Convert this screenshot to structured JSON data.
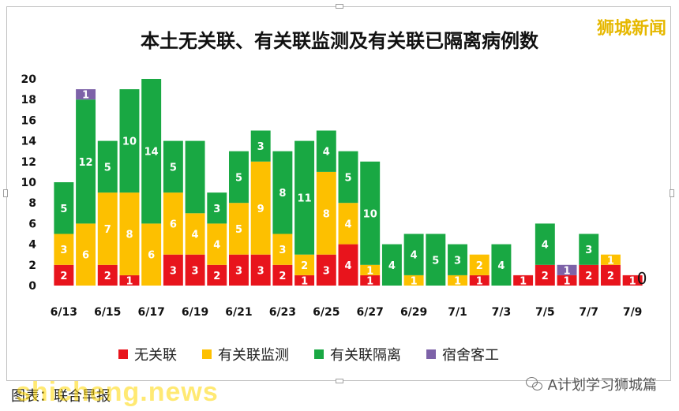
{
  "brand": "狮城新闻",
  "footer": {
    "left": "图表：联合早报",
    "right": "A计划学习狮城篇",
    "watermark": "shicheng.news"
  },
  "colors": {
    "unlinked": "#e8141c",
    "linked_surveillance": "#fdc000",
    "linked_quarantine": "#19a843",
    "dorm": "#7d62a8"
  },
  "chart_data": {
    "type": "bar",
    "stacked": true,
    "title": "本土无关联、有关联监测及有关联已隔离病例数",
    "xlabel": "",
    "ylabel": "",
    "ylim": [
      0,
      20
    ],
    "yticks": [
      0,
      2,
      4,
      6,
      8,
      10,
      12,
      14,
      16,
      18,
      20
    ],
    "grid": false,
    "legend_position": "bottom",
    "categories": [
      "6/13",
      "6/14",
      "6/15",
      "6/16",
      "6/17",
      "6/18",
      "6/19",
      "6/20",
      "6/21",
      "6/22",
      "6/23",
      "6/24",
      "6/25",
      "6/26",
      "6/27",
      "6/28",
      "6/29",
      "6/30",
      "7/1",
      "7/2",
      "7/3",
      "7/4",
      "7/5",
      "7/6",
      "7/7",
      "7/8",
      "7/9"
    ],
    "x_tick_labels": [
      "6/13",
      "",
      "6/15",
      "",
      "6/17",
      "",
      "6/19",
      "",
      "6/21",
      "",
      "6/23",
      "",
      "6/25",
      "",
      "6/27",
      "",
      "6/29",
      "",
      "7/1",
      "",
      "7/3",
      "",
      "7/5",
      "",
      "7/7",
      "",
      "7/9"
    ],
    "series": [
      {
        "name": "无关联",
        "color": "#e8141c",
        "values": [
          2,
          0,
          2,
          1,
          0,
          3,
          3,
          2,
          3,
          3,
          2,
          1,
          3,
          4,
          1,
          0,
          0,
          0,
          0,
          1,
          0,
          1,
          2,
          1,
          2,
          2,
          1
        ]
      },
      {
        "name": "有关联监测",
        "color": "#fdc000",
        "values": [
          3,
          6,
          7,
          8,
          6,
          6,
          4,
          4,
          5,
          9,
          3,
          2,
          8,
          4,
          1,
          0,
          1,
          0,
          1,
          2,
          0,
          0,
          0,
          0,
          0,
          1,
          0
        ]
      },
      {
        "name": "有关联隔离",
        "color": "#19a843",
        "values": [
          5,
          12,
          5,
          10,
          14,
          5,
          7,
          3,
          5,
          3,
          8,
          11,
          4,
          5,
          10,
          4,
          4,
          5,
          3,
          0,
          4,
          0,
          4,
          0,
          3,
          0,
          0
        ]
      },
      {
        "name": "宿舍客工",
        "color": "#7d62a8",
        "values": [
          0,
          1,
          0,
          0,
          0,
          0,
          0,
          0,
          0,
          0,
          0,
          0,
          0,
          0,
          0,
          0,
          0,
          0,
          0,
          0,
          0,
          0,
          0,
          1,
          0,
          0,
          0
        ]
      }
    ],
    "value_labels": {
      "无关联": [
        "2",
        "",
        "2",
        "1",
        "",
        "3",
        "3",
        "2",
        "3",
        "3",
        "2",
        "1",
        "3",
        "4",
        "1",
        "",
        "",
        "",
        "",
        "1",
        "",
        "1",
        "2",
        "1",
        "2",
        "2",
        "1"
      ],
      "有关联监测": [
        "3",
        "6",
        "7",
        "8",
        "6",
        "6",
        "4",
        "4",
        "5",
        "9",
        "3",
        "2",
        "8",
        "4",
        "1",
        "",
        "1",
        "",
        "1",
        "2",
        "",
        "",
        "",
        "",
        "",
        "1",
        ""
      ],
      "有关联隔离": [
        "5",
        "12",
        "5",
        "10",
        "14",
        "5",
        "",
        "3",
        "5",
        "3",
        "8",
        "11",
        "4",
        "5",
        "10",
        "4",
        "4",
        "5",
        "3",
        "",
        "4",
        "",
        "4",
        "",
        "3",
        "",
        ""
      ],
      "宿舍客工": [
        "",
        "1",
        "",
        "",
        "",
        "",
        "",
        "",
        "",
        "",
        "",
        "",
        "",
        "",
        "",
        "",
        "",
        "",
        "",
        "",
        "",
        "",
        "",
        "1",
        "",
        "",
        ""
      ]
    },
    "annotations": [
      {
        "category": "7/9",
        "text": "0"
      }
    ]
  }
}
